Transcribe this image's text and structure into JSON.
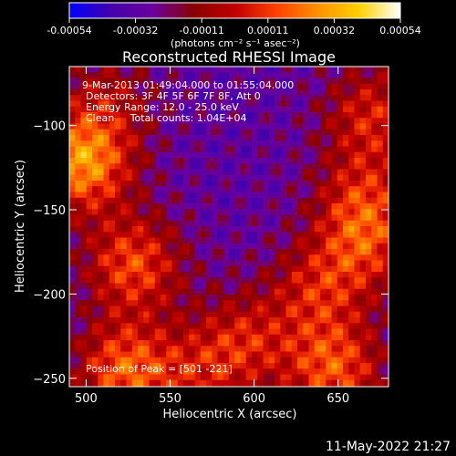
{
  "chart_data": {
    "type": "heatmap",
    "title": "Reconstructed RHESSI Image",
    "xlabel": "Heliocentric X (arcsec)",
    "ylabel": "Heliocentric Y (arcsec)",
    "xlim": [
      490,
      680
    ],
    "ylim": [
      -255,
      -65
    ],
    "xticks": [
      500,
      550,
      600,
      650
    ],
    "yticks": [
      -100,
      -150,
      -200,
      -250
    ],
    "colorbar": {
      "range": [
        -0.00054,
        0.00054
      ],
      "ticks": [
        "-0.00054",
        "-0.00032",
        "-0.00011",
        "0.00011",
        "0.00032",
        "0.00054"
      ],
      "unit_label": "(photons cm⁻² s⁻¹ asec⁻²)",
      "colormap": [
        "#0000ff",
        "#4400aa",
        "#6a00a0",
        "#8a0000",
        "#c00000",
        "#ff4000",
        "#ff9000",
        "#ffd000",
        "#ffffff"
      ]
    },
    "annotations": [
      "9-Mar-2013 01:49:04.000 to 01:55:04.000",
      "Detectors: 3F 4F 5F 6F 7F 8F, Att 0",
      "Energy Range: 12.0 - 25.0 keV",
      "Clean     Total counts: 1.04E+04"
    ],
    "peak_text": "Position of Peak = [501 -221]",
    "peak_position": [
      501,
      -221
    ],
    "timestamp": "11-May-2022 21:27"
  }
}
